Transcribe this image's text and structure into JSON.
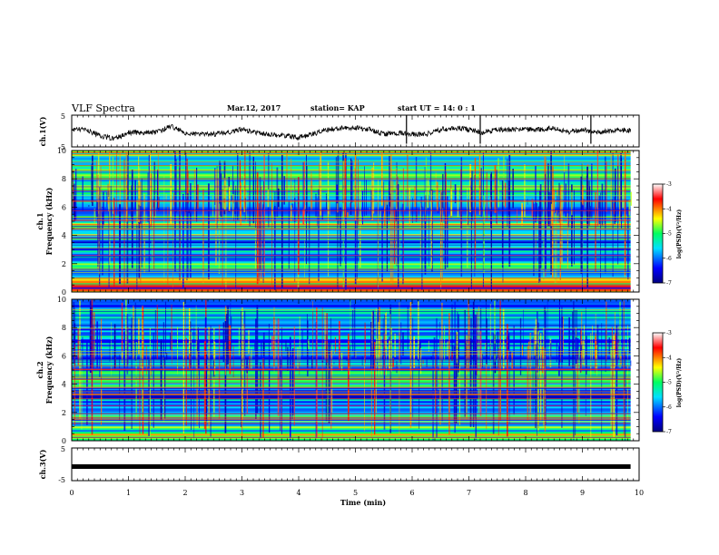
{
  "header": {
    "title": "VLF Spectra",
    "date": "Mar.12, 2017",
    "station": "station= KAP",
    "start": "start UT =  14: 0  : 1"
  },
  "chart_data": [
    {
      "id": "ch1",
      "type": "line",
      "ylabel": "ch.1(V)",
      "ylim": [
        -5,
        5
      ],
      "y_ticks": [
        "5",
        "-5"
      ],
      "xlim": [
        0,
        10
      ],
      "data_end": 9.85,
      "series": [
        {
          "color": "#000000",
          "x": [
            0,
            0.25,
            0.5,
            0.75,
            1,
            1.25,
            1.5,
            1.75,
            2,
            2.25,
            2.5,
            2.75,
            3,
            3.25,
            3.5,
            3.75,
            4,
            4.25,
            4.5,
            4.75,
            5,
            5.25,
            5.5,
            5.75,
            6,
            6.25,
            6.5,
            6.75,
            7,
            7.25,
            7.5,
            7.75,
            8,
            8.25,
            8.5,
            8.75,
            9,
            9.25,
            9.5,
            9.75,
            9.85
          ],
          "values": [
            0.5,
            0.5,
            -1.5,
            -2.5,
            -0.5,
            -0.5,
            -0.5,
            1.5,
            -0.5,
            -1,
            -1,
            -0.5,
            0.5,
            -0.5,
            -1,
            -1.5,
            -2,
            -1,
            0.5,
            1,
            1,
            0.5,
            -1,
            -0.5,
            -1,
            -1,
            0.5,
            1,
            0.5,
            -0.5,
            0.5,
            0.5,
            0.5,
            0.5,
            1,
            -0.5,
            0.5,
            -0.5,
            0,
            0.5,
            0
          ]
        }
      ]
    },
    {
      "id": "ch1-spectrogram",
      "type": "heatmap",
      "ylabel": "ch.1 Frequency (kHz)",
      "ylim": [
        0,
        10
      ],
      "y_ticks": [
        0,
        2,
        4,
        6,
        8,
        10
      ],
      "xlim": [
        0,
        10
      ],
      "data_end": 9.85,
      "colorbar": {
        "label": "log(PSD)(V²/Hz)",
        "range": [
          -7,
          -3
        ],
        "ticks": [
          "-3",
          "-4",
          "-5",
          "-6",
          "-7"
        ]
      },
      "band_levels": [
        {
          "f_from": 0,
          "f_to": 0.5,
          "level": -4.2
        },
        {
          "f_from": 0.5,
          "f_to": 1.0,
          "level": -4.6
        },
        {
          "f_from": 1.0,
          "f_to": 1.6,
          "level": -5.4
        },
        {
          "f_from": 1.6,
          "f_to": 2.2,
          "level": -5.3
        },
        {
          "f_from": 2.2,
          "f_to": 3.0,
          "level": -5.7
        },
        {
          "f_from": 3.0,
          "f_to": 3.7,
          "level": -6.1
        },
        {
          "f_from": 3.7,
          "f_to": 5.0,
          "level": -5.0
        },
        {
          "f_from": 5.0,
          "f_to": 6.0,
          "level": -5.6
        },
        {
          "f_from": 6.0,
          "f_to": 10.0,
          "level": -5.3
        }
      ]
    },
    {
      "id": "ch2-spectrogram",
      "type": "heatmap",
      "ylabel": "ch.2 Frequency (kHz)",
      "ylim": [
        0,
        10
      ],
      "y_ticks": [
        0,
        2,
        4,
        6,
        8,
        10
      ],
      "xlim": [
        0,
        10
      ],
      "data_end": 9.85,
      "colorbar": {
        "label": "log(PSD)(V²/Hz)",
        "range": [
          -7,
          -3
        ],
        "ticks": [
          "-3",
          "-4",
          "-5",
          "-6",
          "-7"
        ]
      },
      "band_levels": [
        {
          "f_from": 0,
          "f_to": 0.5,
          "level": -4.6
        },
        {
          "f_from": 0.5,
          "f_to": 1.0,
          "level": -5.2
        },
        {
          "f_from": 1.0,
          "f_to": 1.6,
          "level": -5.8
        },
        {
          "f_from": 1.6,
          "f_to": 2.2,
          "level": -5.7
        },
        {
          "f_from": 2.2,
          "f_to": 3.0,
          "level": -5.9
        },
        {
          "f_from": 3.0,
          "f_to": 3.7,
          "level": -6.2
        },
        {
          "f_from": 3.7,
          "f_to": 5.0,
          "level": -5.2
        },
        {
          "f_from": 5.0,
          "f_to": 6.0,
          "level": -6.0
        },
        {
          "f_from": 6.0,
          "f_to": 10.0,
          "level": -5.8
        }
      ]
    },
    {
      "id": "ch3",
      "type": "line",
      "ylabel": "ch.3(V)",
      "ylim": [
        -5,
        5
      ],
      "y_ticks": [
        "5",
        "-5"
      ],
      "xlim": [
        0,
        10
      ],
      "data_end": 9.85,
      "series": [
        {
          "color": "#000000",
          "x": [
            0,
            9.85
          ],
          "values": [
            0,
            0
          ]
        }
      ]
    }
  ],
  "x_axis": {
    "label": "Time (min)",
    "ticks": [
      "0",
      "1",
      "2",
      "3",
      "4",
      "5",
      "6",
      "7",
      "8",
      "9",
      "10"
    ]
  }
}
